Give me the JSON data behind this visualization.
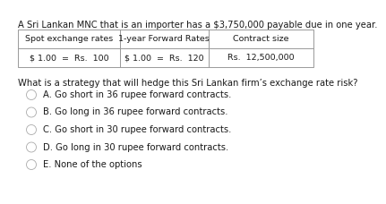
{
  "bg_color": "#ffffff",
  "title_text": "A Sri Lankan MNC that is an importer has a $3,750,000 payable due in one year.",
  "table_headers": [
    "Spot exchange rates",
    "1-year Forward Rates",
    "Contract size"
  ],
  "table_row_col0": "$ 1.00  =  Rs.  100",
  "table_row_col1": "$ 1.00  =  Rs.  120",
  "table_row_col2": "Rs.  12,500,000",
  "question": "What is a strategy that will hedge this Sri Lankan firm’s exchange rate risk?",
  "options": [
    "A. Go short in 36 rupee forward contracts.",
    "B. Go long in 36 rupee forward contracts.",
    "C. Go short in 30 rupee forward contracts.",
    "D. Go long in 30 rupee forward contracts.",
    "E. None of the options"
  ],
  "title_fontsize": 7.2,
  "question_fontsize": 7.2,
  "option_fontsize": 7.2,
  "table_header_fontsize": 6.8,
  "table_row_fontsize": 6.8,
  "text_color": "#1a1a1a",
  "table_border_color": "#999999"
}
